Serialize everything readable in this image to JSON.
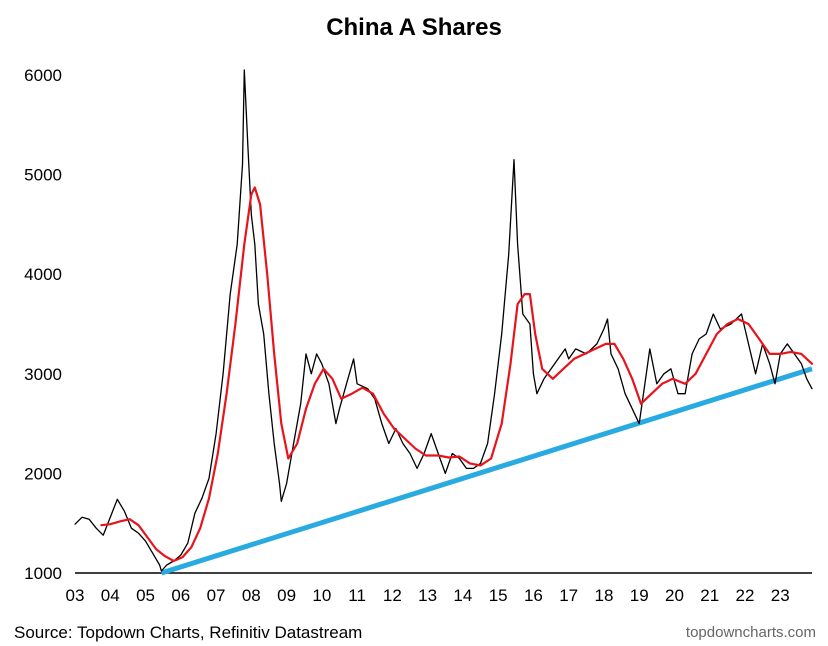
{
  "chart_data": {
    "type": "line",
    "title": "China A Shares",
    "xlabel": "",
    "ylabel": "",
    "x_tick_labels": [
      "03",
      "04",
      "05",
      "06",
      "07",
      "08",
      "09",
      "10",
      "11",
      "12",
      "13",
      "14",
      "15",
      "16",
      "17",
      "18",
      "19",
      "20",
      "21",
      "22",
      "23"
    ],
    "y_tick_labels": [
      "1000",
      "2000",
      "3000",
      "4000",
      "5000",
      "6000"
    ],
    "xlim": [
      2003.0,
      2023.9
    ],
    "ylim": [
      1000,
      6000
    ],
    "grid": false,
    "legend": "none",
    "colors": {
      "index": "#000000",
      "moving_average": "#e8141c",
      "trendline": "#29aae1"
    },
    "series": [
      {
        "role": "index",
        "points": [
          [
            2003.0,
            1490
          ],
          [
            2003.2,
            1560
          ],
          [
            2003.4,
            1540
          ],
          [
            2003.6,
            1450
          ],
          [
            2003.8,
            1380
          ],
          [
            2004.0,
            1560
          ],
          [
            2004.2,
            1740
          ],
          [
            2004.4,
            1620
          ],
          [
            2004.6,
            1450
          ],
          [
            2004.8,
            1400
          ],
          [
            2005.0,
            1320
          ],
          [
            2005.2,
            1200
          ],
          [
            2005.4,
            1080
          ],
          [
            2005.45,
            1020
          ],
          [
            2005.6,
            1080
          ],
          [
            2005.8,
            1120
          ],
          [
            2006.0,
            1180
          ],
          [
            2006.2,
            1300
          ],
          [
            2006.4,
            1600
          ],
          [
            2006.6,
            1750
          ],
          [
            2006.8,
            1950
          ],
          [
            2007.0,
            2400
          ],
          [
            2007.2,
            3000
          ],
          [
            2007.4,
            3800
          ],
          [
            2007.6,
            4300
          ],
          [
            2007.75,
            5100
          ],
          [
            2007.8,
            6050
          ],
          [
            2007.9,
            5300
          ],
          [
            2008.0,
            4600
          ],
          [
            2008.1,
            4300
          ],
          [
            2008.2,
            3700
          ],
          [
            2008.35,
            3400
          ],
          [
            2008.5,
            2800
          ],
          [
            2008.65,
            2300
          ],
          [
            2008.8,
            1900
          ],
          [
            2008.85,
            1720
          ],
          [
            2009.0,
            1900
          ],
          [
            2009.2,
            2300
          ],
          [
            2009.4,
            2700
          ],
          [
            2009.55,
            3200
          ],
          [
            2009.7,
            3000
          ],
          [
            2009.85,
            3200
          ],
          [
            2010.0,
            3100
          ],
          [
            2010.2,
            2900
          ],
          [
            2010.4,
            2500
          ],
          [
            2010.5,
            2650
          ],
          [
            2010.7,
            2900
          ],
          [
            2010.9,
            3150
          ],
          [
            2011.0,
            2900
          ],
          [
            2011.3,
            2850
          ],
          [
            2011.5,
            2750
          ],
          [
            2011.7,
            2500
          ],
          [
            2011.9,
            2300
          ],
          [
            2012.1,
            2450
          ],
          [
            2012.3,
            2300
          ],
          [
            2012.5,
            2200
          ],
          [
            2012.7,
            2050
          ],
          [
            2012.9,
            2200
          ],
          [
            2013.1,
            2400
          ],
          [
            2013.3,
            2200
          ],
          [
            2013.5,
            2000
          ],
          [
            2013.7,
            2200
          ],
          [
            2013.9,
            2150
          ],
          [
            2014.1,
            2050
          ],
          [
            2014.3,
            2050
          ],
          [
            2014.5,
            2100
          ],
          [
            2014.7,
            2300
          ],
          [
            2014.9,
            2800
          ],
          [
            2015.1,
            3400
          ],
          [
            2015.3,
            4200
          ],
          [
            2015.45,
            5150
          ],
          [
            2015.55,
            4300
          ],
          [
            2015.7,
            3600
          ],
          [
            2015.9,
            3500
          ],
          [
            2016.0,
            3000
          ],
          [
            2016.1,
            2800
          ],
          [
            2016.3,
            2950
          ],
          [
            2016.5,
            3050
          ],
          [
            2016.7,
            3150
          ],
          [
            2016.9,
            3250
          ],
          [
            2017.0,
            3150
          ],
          [
            2017.2,
            3250
          ],
          [
            2017.5,
            3200
          ],
          [
            2017.8,
            3300
          ],
          [
            2018.0,
            3450
          ],
          [
            2018.1,
            3550
          ],
          [
            2018.2,
            3200
          ],
          [
            2018.4,
            3050
          ],
          [
            2018.6,
            2800
          ],
          [
            2018.8,
            2650
          ],
          [
            2019.0,
            2500
          ],
          [
            2019.2,
            3000
          ],
          [
            2019.3,
            3250
          ],
          [
            2019.5,
            2900
          ],
          [
            2019.7,
            3000
          ],
          [
            2019.9,
            3050
          ],
          [
            2020.1,
            2800
          ],
          [
            2020.3,
            2800
          ],
          [
            2020.5,
            3200
          ],
          [
            2020.7,
            3350
          ],
          [
            2020.9,
            3400
          ],
          [
            2021.1,
            3600
          ],
          [
            2021.3,
            3450
          ],
          [
            2021.6,
            3500
          ],
          [
            2021.9,
            3600
          ],
          [
            2022.1,
            3300
          ],
          [
            2022.3,
            3000
          ],
          [
            2022.5,
            3300
          ],
          [
            2022.7,
            3100
          ],
          [
            2022.85,
            2900
          ],
          [
            2023.0,
            3200
          ],
          [
            2023.2,
            3300
          ],
          [
            2023.4,
            3200
          ],
          [
            2023.6,
            3100
          ],
          [
            2023.75,
            2950
          ],
          [
            2023.9,
            2850
          ]
        ]
      },
      {
        "role": "moving_average",
        "points": [
          [
            2003.75,
            1480
          ],
          [
            2004.0,
            1490
          ],
          [
            2004.3,
            1520
          ],
          [
            2004.55,
            1540
          ],
          [
            2004.8,
            1480
          ],
          [
            2005.05,
            1360
          ],
          [
            2005.3,
            1240
          ],
          [
            2005.55,
            1170
          ],
          [
            2005.8,
            1120
          ],
          [
            2006.05,
            1160
          ],
          [
            2006.3,
            1260
          ],
          [
            2006.55,
            1450
          ],
          [
            2006.8,
            1750
          ],
          [
            2007.05,
            2200
          ],
          [
            2007.3,
            2800
          ],
          [
            2007.55,
            3500
          ],
          [
            2007.8,
            4300
          ],
          [
            2008.0,
            4800
          ],
          [
            2008.1,
            4870
          ],
          [
            2008.25,
            4700
          ],
          [
            2008.45,
            4000
          ],
          [
            2008.65,
            3200
          ],
          [
            2008.85,
            2500
          ],
          [
            2009.05,
            2150
          ],
          [
            2009.3,
            2300
          ],
          [
            2009.55,
            2650
          ],
          [
            2009.8,
            2900
          ],
          [
            2010.05,
            3050
          ],
          [
            2010.3,
            2950
          ],
          [
            2010.55,
            2750
          ],
          [
            2010.85,
            2800
          ],
          [
            2011.15,
            2860
          ],
          [
            2011.45,
            2800
          ],
          [
            2011.75,
            2600
          ],
          [
            2012.05,
            2450
          ],
          [
            2012.35,
            2350
          ],
          [
            2012.65,
            2250
          ],
          [
            2012.95,
            2180
          ],
          [
            2013.3,
            2180
          ],
          [
            2013.6,
            2160
          ],
          [
            2013.9,
            2170
          ],
          [
            2014.2,
            2100
          ],
          [
            2014.5,
            2080
          ],
          [
            2014.8,
            2150
          ],
          [
            2015.1,
            2500
          ],
          [
            2015.35,
            3100
          ],
          [
            2015.55,
            3700
          ],
          [
            2015.75,
            3800
          ],
          [
            2015.9,
            3800
          ],
          [
            2016.05,
            3400
          ],
          [
            2016.25,
            3050
          ],
          [
            2016.55,
            2950
          ],
          [
            2016.85,
            3050
          ],
          [
            2017.15,
            3150
          ],
          [
            2017.45,
            3200
          ],
          [
            2017.75,
            3250
          ],
          [
            2018.05,
            3300
          ],
          [
            2018.3,
            3300
          ],
          [
            2018.55,
            3150
          ],
          [
            2018.8,
            2950
          ],
          [
            2019.05,
            2700
          ],
          [
            2019.35,
            2800
          ],
          [
            2019.65,
            2900
          ],
          [
            2019.95,
            2950
          ],
          [
            2020.3,
            2900
          ],
          [
            2020.6,
            3000
          ],
          [
            2020.9,
            3200
          ],
          [
            2021.2,
            3400
          ],
          [
            2021.5,
            3500
          ],
          [
            2021.8,
            3550
          ],
          [
            2022.1,
            3500
          ],
          [
            2022.4,
            3350
          ],
          [
            2022.7,
            3200
          ],
          [
            2023.0,
            3200
          ],
          [
            2023.3,
            3220
          ],
          [
            2023.6,
            3200
          ],
          [
            2023.9,
            3100
          ]
        ]
      },
      {
        "role": "trendline",
        "points": [
          [
            2005.45,
            1000
          ],
          [
            2023.9,
            3050
          ]
        ]
      }
    ]
  },
  "source_text": "Source: Topdown Charts, Refinitiv Datastream",
  "brand_text": "topdowncharts.com"
}
